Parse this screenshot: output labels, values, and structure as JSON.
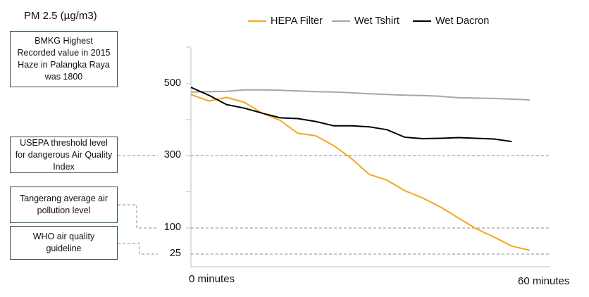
{
  "chart_data": {
    "type": "line",
    "ylabel": "PM 2.5 (µg/m3)",
    "x_start_label": "0 minutes",
    "x_end_label": "60 minutes",
    "x": [
      0,
      1,
      2,
      3,
      4,
      5,
      6,
      7,
      8,
      9,
      10,
      11,
      12,
      13,
      14,
      15,
      16,
      17,
      18,
      19,
      20
    ],
    "yticks": [
      500,
      300,
      100,
      25
    ],
    "series": [
      {
        "name": "HEPA Filter",
        "color": "#f5a623",
        "values": [
          470,
          452,
          462,
          448,
          418,
          398,
          362,
          355,
          328,
          292,
          248,
          232,
          203,
          183,
          158,
          128,
          98,
          74,
          48,
          36,
          null
        ]
      },
      {
        "name": "Wet Tshirt",
        "color": "#a6a6a6",
        "values": [
          477,
          478,
          479,
          483,
          483,
          482,
          480,
          478,
          477,
          475,
          472,
          470,
          468,
          467,
          465,
          461,
          460,
          459,
          457,
          455,
          null
        ]
      },
      {
        "name": "Wet Dacron",
        "color": "#000000",
        "values": [
          490,
          468,
          442,
          432,
          418,
          405,
          403,
          395,
          383,
          383,
          380,
          372,
          351,
          347,
          348,
          350,
          348,
          346,
          339,
          null,
          null
        ]
      }
    ],
    "reference_lines": [
      {
        "value": 300,
        "label": "USEPA threshold level for dangerous Air Quality Index"
      },
      {
        "value": 100,
        "label": "Tangerang average air pollution level"
      },
      {
        "value": 25,
        "label": "WHO air quality guideline"
      }
    ],
    "annotations": [
      "BMKG Highest Recorded value in 2015 Haze in Palangka Raya was 1800"
    ]
  }
}
